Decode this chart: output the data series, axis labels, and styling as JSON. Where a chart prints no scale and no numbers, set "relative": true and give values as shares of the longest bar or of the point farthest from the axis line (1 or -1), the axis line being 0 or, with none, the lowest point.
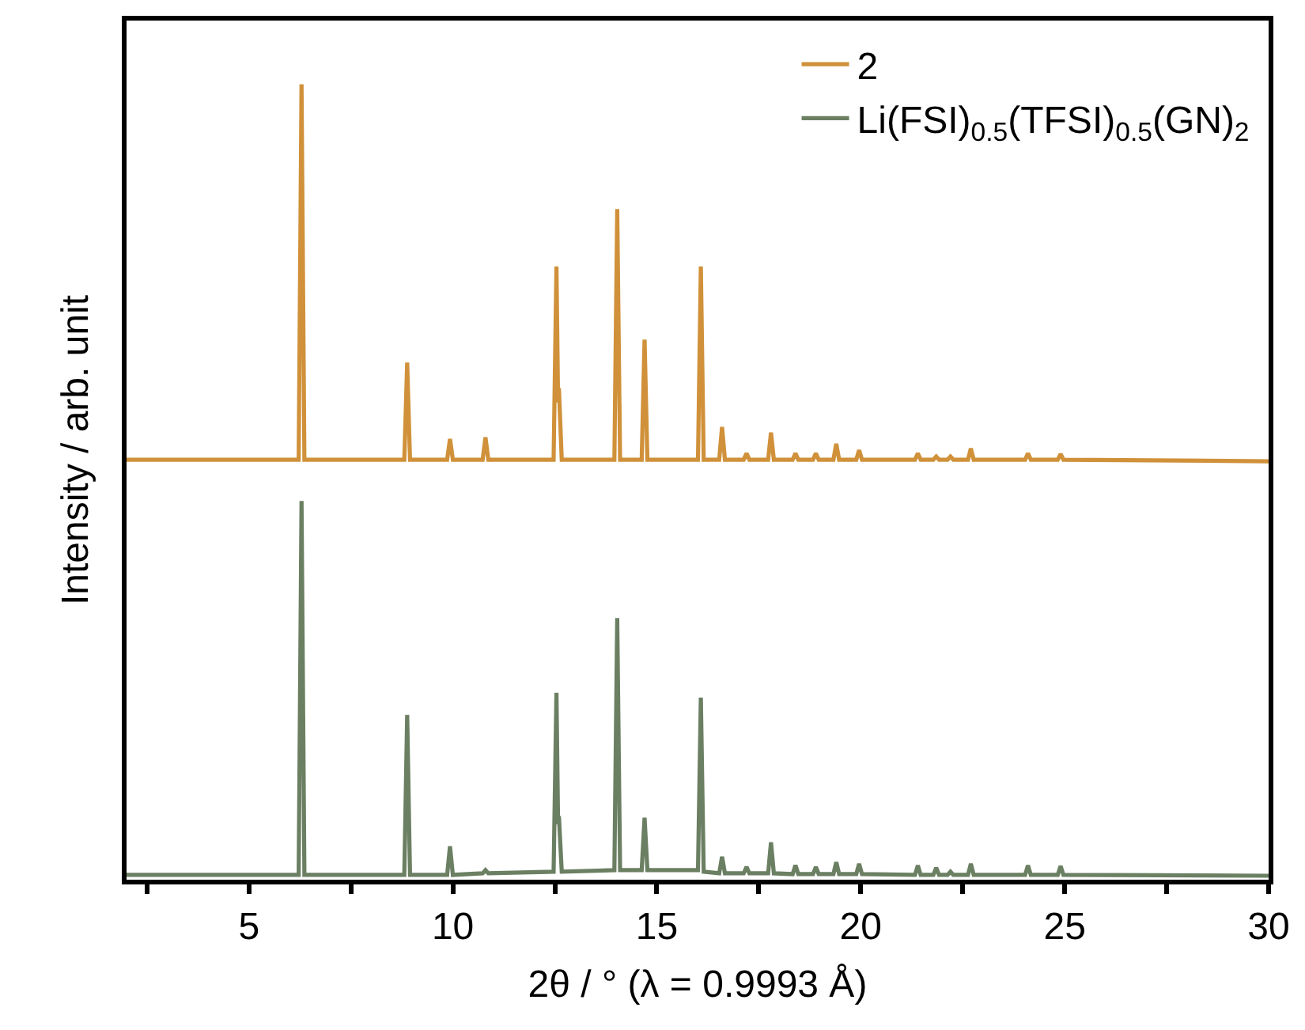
{
  "chart_data": {
    "type": "line",
    "relative": true,
    "xlabel": "2θ / ° (λ = 0.9993 Å)",
    "ylabel": "Intensity / arb. unit",
    "xlim": [
      2,
      30
    ],
    "xticks": [
      {
        "value": 2.5,
        "label": null
      },
      5,
      {
        "value": 7.5,
        "label": null
      },
      10,
      {
        "value": 12.5,
        "label": null
      },
      15,
      {
        "value": 17.5,
        "label": null
      },
      20,
      {
        "value": 22.5,
        "label": null
      },
      25,
      {
        "value": 27.5,
        "label": null
      },
      30
    ],
    "legend": "top right",
    "marker": "none",
    "line_style": "solid",
    "series": [
      {
        "name": "2",
        "color": "#d0913a",
        "x": [
          2,
          6.22,
          6.29,
          6.36,
          8.81,
          8.88,
          8.95,
          9.86,
          9.93,
          10.0,
          10.73,
          10.8,
          10.87,
          12.47,
          12.54,
          12.58,
          12.6,
          12.67,
          13.96,
          14.03,
          14.1,
          14.63,
          14.7,
          14.77,
          16.01,
          16.08,
          16.15,
          16.53,
          16.6,
          16.67,
          17.13,
          17.2,
          17.27,
          17.73,
          17.8,
          17.87,
          18.33,
          18.4,
          18.47,
          18.83,
          18.9,
          18.97,
          19.33,
          19.4,
          19.47,
          19.89,
          19.96,
          20.03,
          21.33,
          21.4,
          21.47,
          21.78,
          21.85,
          21.92,
          22.13,
          22.2,
          22.27,
          22.63,
          22.7,
          22.77,
          24.03,
          24.1,
          24.17,
          24.83,
          24.9,
          24.97,
          30
        ],
        "values": [
          0.528,
          0.528,
          1.0,
          0.528,
          0.528,
          0.65,
          0.528,
          0.528,
          0.554,
          0.528,
          0.528,
          0.556,
          0.528,
          0.528,
          0.771,
          0.6,
          0.618,
          0.528,
          0.528,
          0.843,
          0.528,
          0.528,
          0.679,
          0.528,
          0.528,
          0.771,
          0.528,
          0.528,
          0.569,
          0.528,
          0.528,
          0.536,
          0.528,
          0.528,
          0.562,
          0.528,
          0.528,
          0.536,
          0.528,
          0.528,
          0.536,
          0.528,
          0.528,
          0.548,
          0.528,
          0.528,
          0.54,
          0.528,
          0.528,
          0.536,
          0.528,
          0.528,
          0.532,
          0.528,
          0.528,
          0.532,
          0.528,
          0.528,
          0.542,
          0.528,
          0.528,
          0.536,
          0.528,
          0.528,
          0.535,
          0.528,
          0.526
        ]
      },
      {
        "name": "Li(FSI)$_{0.5}$(TFSI)$_{0.5}$(GN)$_{2}$",
        "color": "#6b7f62",
        "x": [
          2,
          6.22,
          6.29,
          6.36,
          8.81,
          8.88,
          8.95,
          9.86,
          9.93,
          10.0,
          10.73,
          10.8,
          10.87,
          12.47,
          12.54,
          12.58,
          12.6,
          12.67,
          13.96,
          14.03,
          14.1,
          14.63,
          14.7,
          14.77,
          16.01,
          16.08,
          16.15,
          16.53,
          16.6,
          16.67,
          17.13,
          17.2,
          17.27,
          17.73,
          17.8,
          17.87,
          18.33,
          18.4,
          18.47,
          18.83,
          18.9,
          18.97,
          19.33,
          19.4,
          19.47,
          19.89,
          19.96,
          20.03,
          21.33,
          21.4,
          21.47,
          21.78,
          21.85,
          21.92,
          22.13,
          22.2,
          22.27,
          22.63,
          22.7,
          22.77,
          24.03,
          24.1,
          24.17,
          24.83,
          24.9,
          24.97,
          30
        ],
        "values": [
          0.006,
          0.006,
          0.476,
          0.006,
          0.006,
          0.207,
          0.006,
          0.006,
          0.042,
          0.006,
          0.008,
          0.012,
          0.008,
          0.01,
          0.235,
          0.07,
          0.08,
          0.01,
          0.012,
          0.329,
          0.012,
          0.012,
          0.078,
          0.012,
          0.012,
          0.229,
          0.01,
          0.008,
          0.029,
          0.008,
          0.008,
          0.016,
          0.008,
          0.008,
          0.047,
          0.008,
          0.007,
          0.018,
          0.007,
          0.007,
          0.016,
          0.007,
          0.007,
          0.022,
          0.007,
          0.007,
          0.02,
          0.007,
          0.006,
          0.018,
          0.006,
          0.006,
          0.015,
          0.006,
          0.006,
          0.01,
          0.006,
          0.006,
          0.02,
          0.006,
          0.006,
          0.018,
          0.006,
          0.006,
          0.017,
          0.006,
          0.005
        ]
      }
    ]
  }
}
